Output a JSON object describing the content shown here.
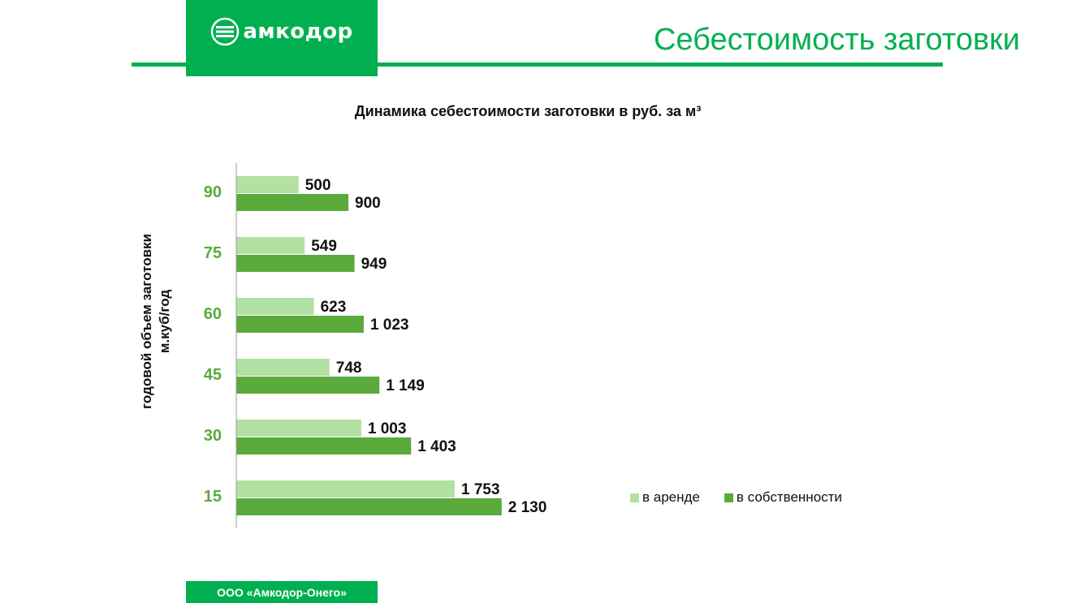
{
  "header": {
    "logo_text": "амкодор",
    "title": "Себестоимость заготовки"
  },
  "footer": {
    "company": "ООО «Амкодор-Онего»"
  },
  "colors": {
    "brand": "#00b050",
    "rent": "#b3e0a3",
    "own": "#5aaa3c",
    "tick": "#5aaa3c"
  },
  "chart_data": {
    "type": "bar",
    "orientation": "horizontal",
    "title": "Динамика себестоимости заготовки  в руб. за м³",
    "ylabel_lines": [
      "годовой объем заготовки",
      "м.куб/год"
    ],
    "xlabel": "",
    "categories": [
      "90",
      "75",
      "60",
      "45",
      "30",
      "15"
    ],
    "series": [
      {
        "name": "в аренде",
        "values": [
          500,
          549,
          623,
          748,
          1003,
          1753
        ],
        "labels": [
          "500",
          "549",
          "623",
          "748",
          "1 003",
          "1 753"
        ]
      },
      {
        "name": "в собственности",
        "values": [
          900,
          949,
          1023,
          1149,
          1403,
          2130
        ],
        "labels": [
          "900",
          "949",
          "1 023",
          "1 149",
          "1 403",
          "2 130"
        ]
      }
    ],
    "xlim": [
      0,
      6780
    ],
    "grid": false,
    "legend_position": "right"
  }
}
